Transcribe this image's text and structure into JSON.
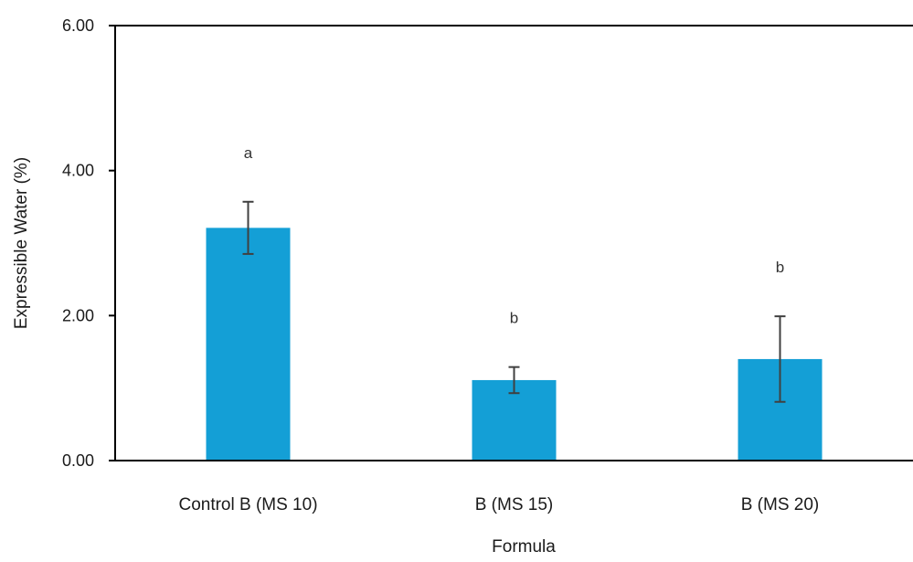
{
  "chart_data": {
    "type": "bar",
    "title": "",
    "xlabel": "Formula",
    "ylabel": "Expressible Water (%)",
    "ylim": [
      0,
      6
    ],
    "yticks": [
      "0.00",
      "2.00",
      "4.00",
      "6.00"
    ],
    "ytick_values": [
      0,
      2,
      4,
      6
    ],
    "categories": [
      "Control B (MS 10)",
      "B (MS 15)",
      "B (MS 20)"
    ],
    "values": [
      3.21,
      1.11,
      1.4
    ],
    "error_bars": [
      0.36,
      0.18,
      0.59
    ],
    "significance_labels": [
      "a",
      "b",
      "b"
    ],
    "grid": false,
    "legend": "none",
    "colors": {
      "bar": "#149fd6",
      "error_bar": "#404040",
      "axis": "#000000"
    }
  }
}
